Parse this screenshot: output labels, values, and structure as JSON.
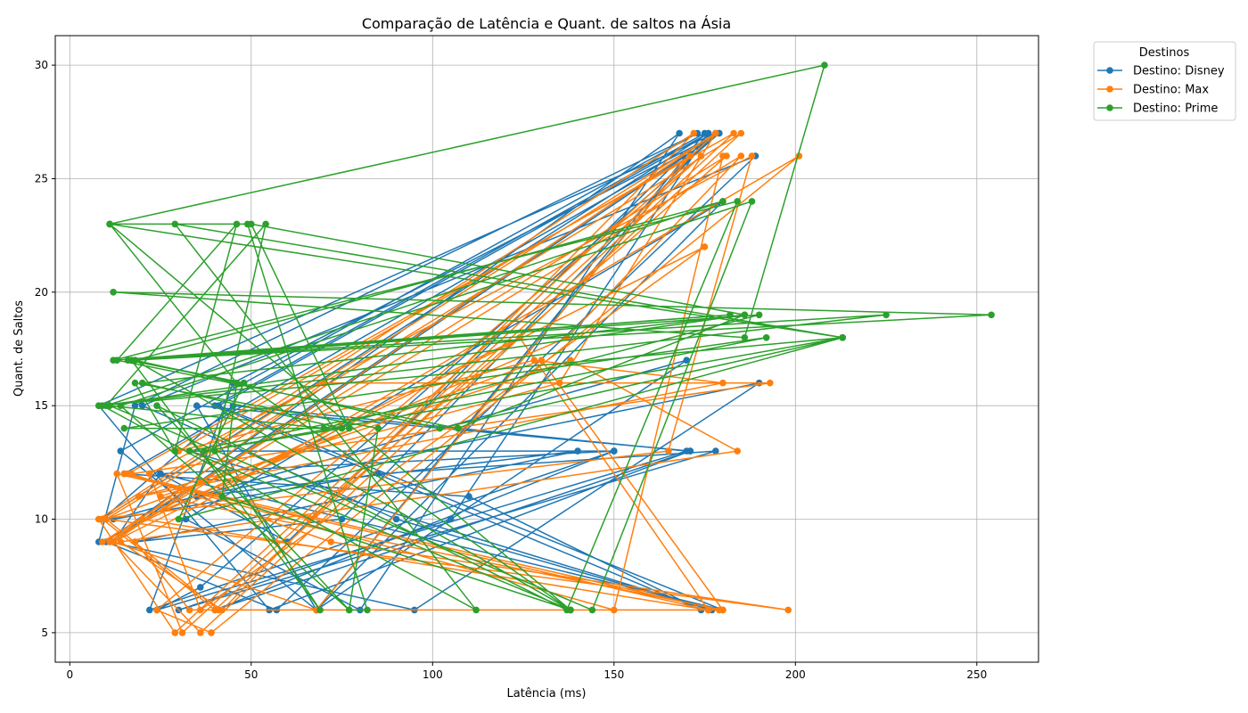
{
  "chart_data": {
    "type": "line",
    "title": "Comparação de Latência e Quant. de saltos na Ásia",
    "xlabel": "Latência (ms)",
    "ylabel": "Quant. de Saltos",
    "xlim": [
      -4,
      267
    ],
    "ylim": [
      3.7,
      31.3
    ],
    "xticks": [
      0,
      50,
      100,
      150,
      200,
      250
    ],
    "yticks": [
      5,
      10,
      15,
      20,
      25,
      30
    ],
    "grid": true,
    "legend": {
      "title": "Destinos",
      "placement": "outside-top-right"
    },
    "series": [
      {
        "name": "Destino: Disney",
        "color": "#1f77b4",
        "x": [
          8,
          18,
          173,
          14,
          68,
          176,
          9,
          45,
          170,
          24,
          36,
          179,
          12,
          25,
          150,
          40,
          171,
          35,
          68,
          180,
          32,
          80,
          168,
          10,
          57,
          189,
          20,
          90,
          177,
          33,
          150,
          22,
          45,
          179,
          15,
          110,
          174,
          40,
          175,
          68,
          170,
          12,
          85,
          178,
          30,
          105,
          176,
          41,
          180,
          25,
          60,
          169,
          11,
          95,
          190,
          35,
          140,
          18,
          75,
          178,
          8,
          55,
          171
        ],
        "y": [
          9,
          15,
          27,
          13,
          6,
          27,
          10,
          15,
          13,
          6,
          7,
          27,
          9,
          12,
          13,
          6,
          13,
          15,
          6,
          24,
          10,
          6,
          27,
          9,
          6,
          26,
          15,
          10,
          6,
          13,
          13,
          6,
          16,
          27,
          12,
          11,
          6,
          15,
          27,
          6,
          17,
          10,
          12,
          13,
          6,
          10,
          27,
          15,
          6,
          12,
          9,
          26,
          9,
          6,
          16,
          11,
          13,
          9,
          10,
          27,
          15,
          6,
          13
        ]
      },
      {
        "name": "Destino: Max",
        "color": "#ff7f0e",
        "x": [
          8,
          29,
          178,
          12,
          36,
          185,
          10,
          41,
          176,
          13,
          31,
          174,
          24,
          39,
          201,
          18,
          33,
          179,
          15,
          66,
          181,
          9,
          124,
          176,
          20,
          137,
          185,
          11,
          70,
          193,
          17,
          72,
          198,
          10,
          130,
          180,
          25,
          138,
          184,
          14,
          42,
          172,
          8,
          165,
          188,
          22,
          36,
          175,
          12,
          68,
          171,
          30,
          128,
          180,
          19,
          135,
          178,
          9,
          40,
          183,
          16,
          150,
          180
        ],
        "y": [
          10,
          5,
          27,
          9,
          5,
          27,
          10,
          6,
          6,
          12,
          5,
          26,
          6,
          5,
          26,
          9,
          6,
          6,
          12,
          10,
          26,
          9,
          18,
          6,
          10,
          18,
          26,
          9,
          16,
          16,
          12,
          9,
          6,
          10,
          17,
          6,
          11,
          17,
          13,
          9,
          6,
          27,
          10,
          13,
          26,
          12,
          6,
          22,
          9,
          6,
          26,
          13,
          17,
          16,
          11,
          16,
          27,
          10,
          6,
          27,
          12,
          6,
          26
        ]
      },
      {
        "name": "Destino: Prime",
        "color": "#2ca02c",
        "x": [
          11,
          208,
          186,
          12,
          254,
          17,
          48,
          30,
          213,
          8,
          225,
          16,
          48,
          138,
          11,
          49,
          82,
          77,
          14,
          188,
          144,
          11,
          70,
          190,
          18,
          102,
          213,
          29,
          112,
          9,
          186,
          107,
          13,
          46,
          29,
          18,
          85,
          77,
          24,
          137,
          184,
          12,
          182,
          17,
          69,
          40,
          54,
          10,
          180,
          18,
          138,
          33,
          192,
          15,
          77,
          50,
          186,
          20,
          75,
          37,
          213,
          11,
          46,
          42,
          138
        ],
        "y": [
          23,
          30,
          18,
          20,
          19,
          17,
          16,
          10,
          18,
          15,
          19,
          17,
          16,
          6,
          23,
          23,
          6,
          6,
          15,
          24,
          6,
          15,
          14,
          19,
          17,
          14,
          18,
          23,
          6,
          15,
          19,
          14,
          17,
          23,
          13,
          16,
          14,
          6,
          15,
          6,
          24,
          17,
          19,
          17,
          6,
          13,
          23,
          15,
          24,
          17,
          6,
          13,
          18,
          14,
          14,
          23,
          19,
          16,
          14,
          13,
          18,
          23,
          16,
          11,
          6
        ]
      }
    ]
  }
}
